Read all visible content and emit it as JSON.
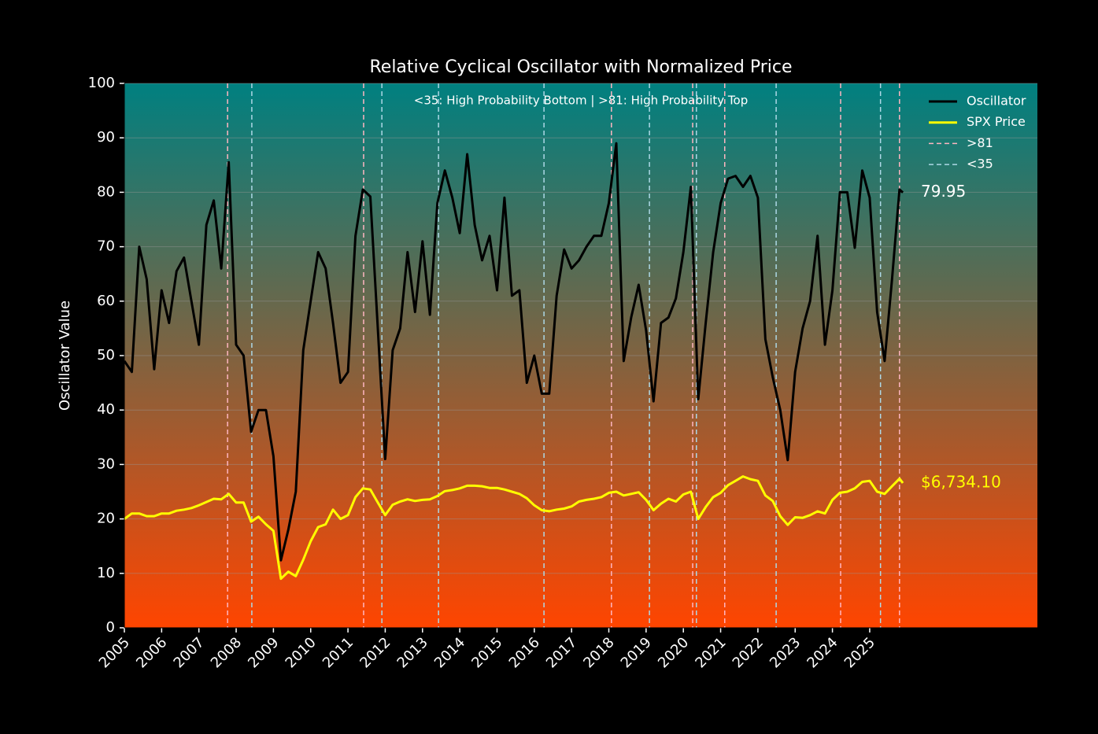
{
  "chart_data": {
    "type": "line",
    "title": "Relative Cyclical Oscillator with Normalized Price",
    "subtitle": "<35: High Probability Bottom | >81: High Probability Top",
    "ylabel": "Oscillator Value",
    "x": [
      2005,
      2005.2,
      2005.4,
      2005.6,
      2005.8,
      2006,
      2006.2,
      2006.4,
      2006.6,
      2006.8,
      2007,
      2007.2,
      2007.4,
      2007.6,
      2007.8,
      2008,
      2008.2,
      2008.4,
      2008.6,
      2008.8,
      2009,
      2009.2,
      2009.4,
      2009.6,
      2009.8,
      2010,
      2010.2,
      2010.4,
      2010.6,
      2010.8,
      2011,
      2011.2,
      2011.4,
      2011.6,
      2011.8,
      2012,
      2012.2,
      2012.4,
      2012.6,
      2012.8,
      2013,
      2013.2,
      2013.4,
      2013.6,
      2013.8,
      2014,
      2014.2,
      2014.4,
      2014.6,
      2014.8,
      2015,
      2015.2,
      2015.4,
      2015.6,
      2015.8,
      2016,
      2016.2,
      2016.4,
      2016.6,
      2016.8,
      2017,
      2017.2,
      2017.4,
      2017.6,
      2017.8,
      2018,
      2018.2,
      2018.4,
      2018.6,
      2018.8,
      2019,
      2019.2,
      2019.4,
      2019.6,
      2019.8,
      2020,
      2020.2,
      2020.4,
      2020.6,
      2020.8,
      2021,
      2021.2,
      2021.4,
      2021.6,
      2021.8,
      2022,
      2022.2,
      2022.4,
      2022.6,
      2022.8,
      2023,
      2023.2,
      2023.4,
      2023.6,
      2023.8,
      2024,
      2024.2,
      2024.4,
      2024.6,
      2024.8,
      2025,
      2025.2,
      2025.4,
      2025.6,
      2025.8,
      2025.89
    ],
    "series": [
      {
        "name": "Oscillator",
        "color": "#000000",
        "label_color": "#ffffff",
        "width": 3,
        "end_label": "79.95",
        "values": [
          49,
          47,
          70,
          64,
          47.5,
          62,
          56,
          65.5,
          68,
          60,
          52,
          74,
          78.5,
          66,
          85.5,
          52,
          50,
          36,
          40,
          40,
          31.5,
          12.4,
          18,
          25,
          51,
          60,
          69,
          66,
          56,
          45,
          47,
          72,
          80.5,
          79.2,
          55,
          31,
          51,
          55,
          69,
          58,
          71,
          57.5,
          78,
          84,
          79,
          72.5,
          87,
          74,
          67.5,
          72,
          62,
          79,
          61,
          62,
          45,
          50,
          43,
          43,
          61,
          69.5,
          66,
          67.5,
          70,
          72,
          72,
          78,
          89,
          49,
          57,
          63,
          54.6,
          41.6,
          56,
          57,
          60.5,
          69,
          81,
          42,
          56,
          69,
          78,
          82.5,
          83,
          81,
          83,
          79,
          53,
          46,
          40,
          30.8,
          47,
          55,
          60,
          72,
          52,
          62,
          80,
          80,
          69.8,
          84,
          79,
          58,
          49,
          64,
          80.5,
          79.95
        ]
      },
      {
        "name": "SPX Price",
        "color": "#ffff00",
        "label_color": "#ffff00",
        "width": 3,
        "end_label": "$6,734.10",
        "values": [
          20,
          21,
          21,
          20.5,
          20.5,
          21,
          21,
          21.5,
          21.7,
          22,
          22.5,
          23.1,
          23.7,
          23.6,
          24.6,
          23,
          23,
          19.5,
          20.4,
          19,
          17.8,
          9,
          10.3,
          9.5,
          12.5,
          15.9,
          18.5,
          19,
          21.7,
          20,
          20.7,
          24,
          25.6,
          25.4,
          23,
          20.7,
          22.6,
          23.2,
          23.6,
          23.3,
          23.5,
          23.6,
          24.2,
          25.1,
          25.3,
          25.6,
          26.1,
          26.1,
          26,
          25.7,
          25.7,
          25.4,
          25,
          24.6,
          23.8,
          22.5,
          21.6,
          21.4,
          21.7,
          21.9,
          22.3,
          23.2,
          23.5,
          23.7,
          24,
          24.8,
          25,
          24.3,
          24.6,
          24.9,
          23.5,
          21.6,
          22.8,
          23.7,
          23.2,
          24.5,
          25,
          20,
          22.2,
          24,
          24.8,
          26.2,
          27,
          27.8,
          27.3,
          27,
          24.3,
          23.3,
          20.5,
          18.9,
          20.3,
          20.2,
          20.7,
          21.4,
          21,
          23.5,
          24.8,
          25,
          25.6,
          26.8,
          27,
          25,
          24.6,
          26,
          27.4,
          26.6
        ]
      }
    ],
    "reference_lines": [
      {
        "name": ">81",
        "color": "#ffb6c1",
        "x": [
          2007.77,
          2011.42,
          2018.07,
          2020.25,
          2021.11,
          2024.22,
          2025.8
        ]
      },
      {
        "name": "<35",
        "color": "#add8e6",
        "x": [
          2008.42,
          2011.91,
          2013.43,
          2016.26,
          2019.09,
          2020.35,
          2022.49,
          2025.29
        ]
      }
    ],
    "xlim": [
      2005,
      2029.5
    ],
    "xticks": [
      2005,
      2006,
      2007,
      2008,
      2009,
      2010,
      2011,
      2012,
      2013,
      2014,
      2015,
      2016,
      2017,
      2018,
      2019,
      2020,
      2021,
      2022,
      2023,
      2024,
      2025
    ],
    "ylim": [
      0,
      100
    ],
    "yticks": [
      0,
      10,
      20,
      30,
      40,
      50,
      60,
      70,
      80,
      90,
      100
    ],
    "grid": true,
    "legend": "upper right",
    "background_gradient": [
      "#008080",
      "#ff4500"
    ]
  }
}
